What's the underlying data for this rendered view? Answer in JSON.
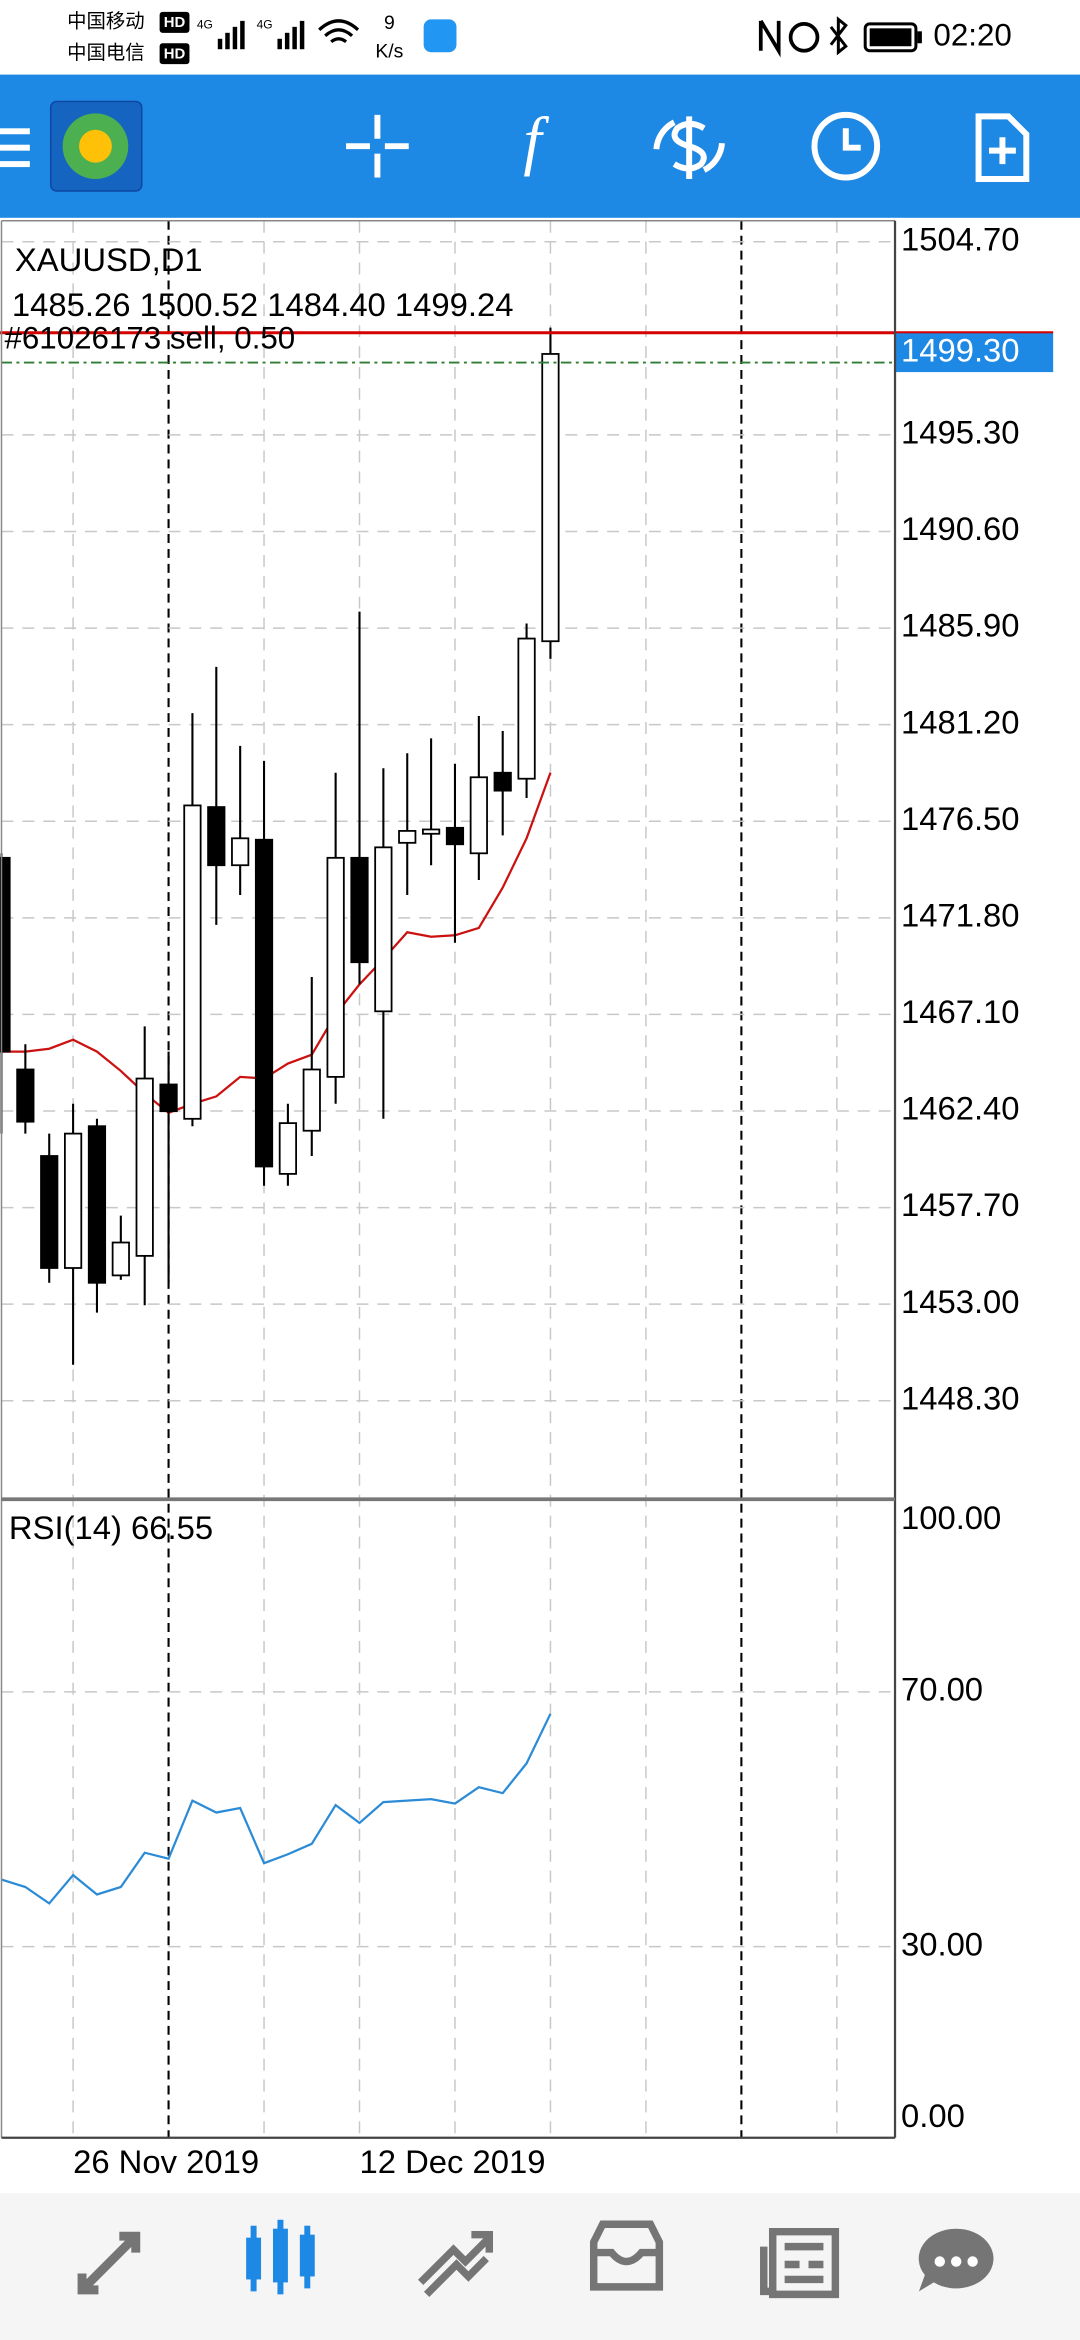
{
  "status_bar": {
    "carrier_1": "中国移动",
    "carrier_1_badge": "HD",
    "carrier_2": "中国电信",
    "carrier_2_badge": "HD",
    "network_1": "4G",
    "network_2": "4G",
    "speed_value": "9",
    "speed_unit": "K/s",
    "time": "02:20"
  },
  "toolbar": {
    "indicator_icon": "f"
  },
  "chart_data": [
    {
      "type": "candlestick",
      "title": "XAUUSD,D1",
      "ohlc_label": "1485.26 1500.52 1484.40 1499.24",
      "categories": [
        null,
        null,
        null,
        "26 Nov 2019",
        null,
        null,
        null,
        null,
        null,
        null,
        null,
        null,
        null,
        null,
        null,
        "12 Dec 2019",
        null,
        null,
        null,
        null,
        null,
        null,
        null,
        null
      ],
      "open": [
        1474.72,
        1464.42,
        1460.21,
        1454.76,
        1461.66,
        1454.4,
        1455.35,
        1463.69,
        1462.02,
        1477.19,
        1474.36,
        1475.6,
        1459.34,
        1461.44,
        1464.06,
        1474.72,
        1467.25,
        1475.45,
        1475.89,
        1476.18,
        1474.94,
        1478.86,
        1478.57,
        1485.26
      ],
      "high": [
        1474.94,
        1465.65,
        1461.3,
        1462.75,
        1462.02,
        1457.31,
        1466.52,
        1465.29,
        1481.76,
        1484.01,
        1480.17,
        1479.44,
        1462.75,
        1468.92,
        1478.86,
        1486.7,
        1479.08,
        1479.81,
        1480.53,
        1479.3,
        1481.62,
        1480.89,
        1486.12,
        1500.52
      ],
      "low": [
        1461.3,
        1461.3,
        1454.04,
        1450.05,
        1452.59,
        1454.18,
        1452.95,
        1454.04,
        1461.66,
        1471.46,
        1472.91,
        1458.76,
        1458.76,
        1460.21,
        1462.75,
        1468.56,
        1462.02,
        1472.91,
        1474.36,
        1470.59,
        1473.64,
        1475.81,
        1477.63,
        1484.4
      ],
      "close": [
        1465.29,
        1461.88,
        1454.76,
        1461.3,
        1454.04,
        1456.0,
        1463.98,
        1462.39,
        1477.27,
        1474.36,
        1475.67,
        1459.7,
        1461.81,
        1464.42,
        1474.72,
        1469.64,
        1475.23,
        1476.03,
        1476.1,
        1475.38,
        1478.64,
        1477.99,
        1485.39,
        1499.24
      ],
      "up_color": "#ffffff",
      "down_color": "#000000",
      "ma_color": "#cc1111",
      "ma_values": [
        1465.29,
        1465.29,
        1465.43,
        1465.87,
        1465.29,
        1464.35,
        1463.26,
        1462.31,
        1462.75,
        1463.11,
        1464.06,
        1463.98,
        1464.71,
        1465.14,
        1467.1,
        1468.56,
        1469.79,
        1471.1,
        1470.88,
        1470.95,
        1471.31,
        1473.27,
        1475.67,
        1478.86
      ],
      "ylim": [
        1443.58,
        1505.72
      ],
      "yticks": [
        {
          "value": 1504.7,
          "label": "1504.70"
        },
        {
          "value": 1495.3,
          "label": "1495.30"
        },
        {
          "value": 1490.6,
          "label": "1490.60"
        },
        {
          "value": 1485.9,
          "label": "1485.90"
        },
        {
          "value": 1481.2,
          "label": "1481.20"
        },
        {
          "value": 1476.5,
          "label": "1476.50"
        },
        {
          "value": 1471.8,
          "label": "1471.80"
        },
        {
          "value": 1467.1,
          "label": "1467.10"
        },
        {
          "value": 1462.4,
          "label": "1462.40"
        },
        {
          "value": 1457.7,
          "label": "1457.70"
        },
        {
          "value": 1453,
          "label": "1453.00"
        },
        {
          "value": 1448.3,
          "label": "1448.30"
        }
      ],
      "grid": true,
      "order_line": {
        "label": "#61026173 sell, 0.50",
        "value": 1500.27,
        "color": "#d50000"
      },
      "price_label": {
        "value": 1499.3,
        "label": "1499.30",
        "color": "#1e88e5"
      },
      "ask_line": {
        "value": 1498.82,
        "color": "#2e7d32"
      }
    },
    {
      "type": "line",
      "title": "RSI(14) 66.55",
      "color": "#2b8bd6",
      "values": [
        40.53,
        39.36,
        36.78,
        41.23,
        38.19,
        39.36,
        44.74,
        43.8,
        52.92,
        51.05,
        51.75,
        43.1,
        44.5,
        46.14,
        52.22,
        49.42,
        52.69,
        52.92,
        53.16,
        52.46,
        55.03,
        54.09,
        58.77,
        66.55
      ],
      "ylim": [
        0,
        100
      ],
      "yticks": [
        {
          "value": 100,
          "label": "100.00"
        },
        {
          "value": 70,
          "label": "70.00"
        },
        {
          "value": 30,
          "label": "30.00"
        },
        {
          "value": 0,
          "label": "0.00"
        }
      ],
      "grid": true
    }
  ]
}
